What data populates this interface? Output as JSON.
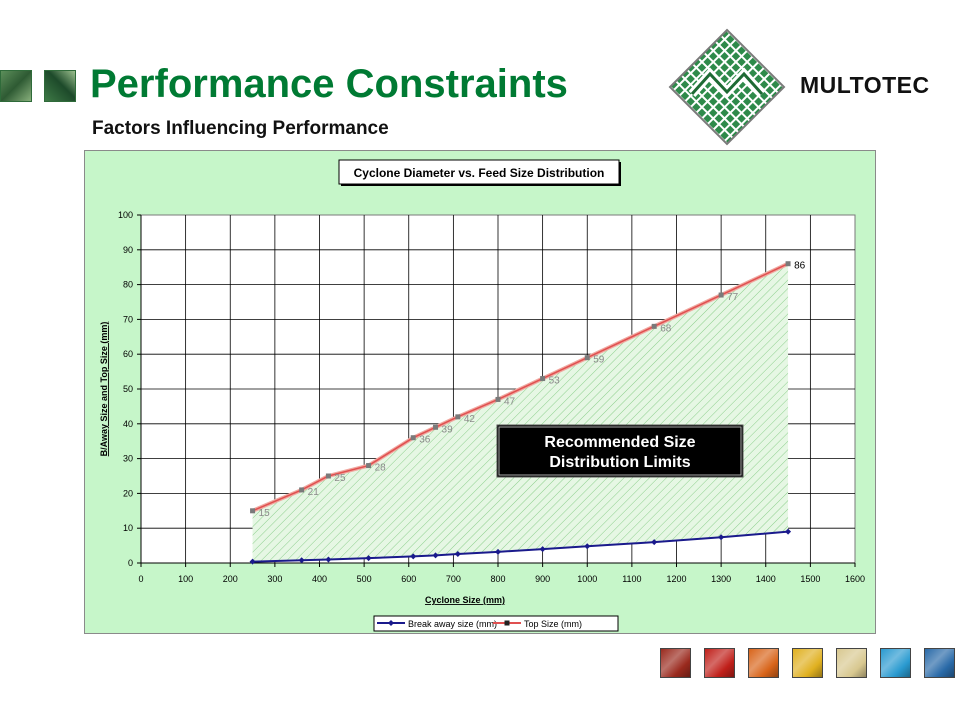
{
  "slide": {
    "title": "Performance Constraints",
    "subtitle": "Factors Influencing Performance",
    "logo_text": "MULTOTEC",
    "brand_color": "#007a33"
  },
  "icons": {
    "corner_left": "photo-thumbnail-icon",
    "corner_right": "photo-thumbnail-icon",
    "logo": "multotec-diamond-logo-icon"
  },
  "swatch_colors": [
    "#9a2a1e",
    "#c0201a",
    "#d8641a",
    "#e0b020",
    "#d8c890",
    "#2a9ad0",
    "#2a6aa8"
  ],
  "chart_data": {
    "type": "line",
    "title": "Cyclone Diameter vs. Feed Size Distribution",
    "xlabel": "Cyclone Size (mm)",
    "ylabel": "B/Away Size and Top Size (mm)",
    "xlim": [
      0,
      1600
    ],
    "ylim": [
      0,
      100
    ],
    "xticks": [
      0,
      100,
      200,
      300,
      400,
      500,
      600,
      700,
      800,
      900,
      1000,
      1100,
      1200,
      1300,
      1400,
      1500,
      1600
    ],
    "yticks": [
      0,
      10,
      20,
      30,
      40,
      50,
      60,
      70,
      80,
      90,
      100
    ],
    "grid": true,
    "legend_position": "bottom",
    "annotation": "Recommended Size Distribution Limits",
    "series": [
      {
        "name": "Break away size (mm)",
        "color": "#1a1a8c",
        "x": [
          250,
          360,
          420,
          510,
          610,
          660,
          710,
          800,
          900,
          1000,
          1150,
          1300,
          1450
        ],
        "y": [
          0.4,
          0.8,
          1.0,
          1.4,
          1.9,
          2.2,
          2.6,
          3.2,
          4.0,
          4.8,
          6.0,
          7.4,
          9.0
        ]
      },
      {
        "name": "Top Size (mm)",
        "color": "#e05050",
        "x": [
          250,
          360,
          420,
          510,
          610,
          660,
          710,
          800,
          900,
          1000,
          1150,
          1300,
          1450
        ],
        "y": [
          15,
          21,
          25,
          28,
          36,
          39,
          42,
          47,
          53,
          59,
          68,
          77,
          86
        ],
        "labels": [
          "15",
          "21",
          "25",
          "28",
          "36",
          "39",
          "42",
          "47",
          "53",
          "59",
          "68",
          "77",
          "86"
        ]
      }
    ]
  }
}
